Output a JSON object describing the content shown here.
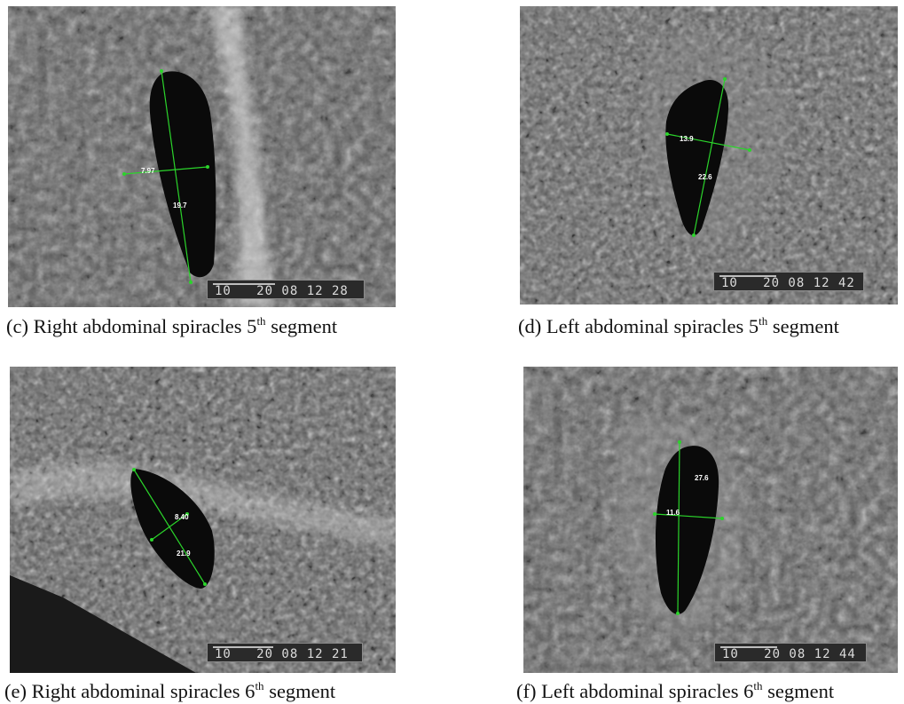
{
  "panels": [
    {
      "id": "c",
      "caption_pre": "(c) Right abdominal spiracles 5",
      "caption_sup": "th",
      "caption_post": " segment",
      "databar": "10   20 08 12 28",
      "measurements": [
        "7.97",
        "19.7"
      ]
    },
    {
      "id": "d",
      "caption_pre": "(d) Left abdominal spiracles 5",
      "caption_sup": "th",
      "caption_post": " segment",
      "databar": "10   20 08 12 42",
      "measurements": [
        "13.9",
        "22.6"
      ]
    },
    {
      "id": "e",
      "caption_pre": "(e) Right abdominal spiracles 6",
      "caption_sup": "th",
      "caption_post": " segment",
      "databar": "10   20 08 12 21",
      "measurements": [
        "8.40",
        "21.9"
      ]
    },
    {
      "id": "f",
      "caption_pre": "(f) Left  abdominal spiracles 6",
      "caption_sup": "th",
      "caption_post": " segment",
      "databar": "10   20 08 12 44",
      "measurements": [
        "11.6",
        "27.6"
      ]
    }
  ],
  "colors": {
    "measure_line": "#2bd42b",
    "sem_base": "#5b5b5b",
    "pore": "#0a0a0a"
  }
}
